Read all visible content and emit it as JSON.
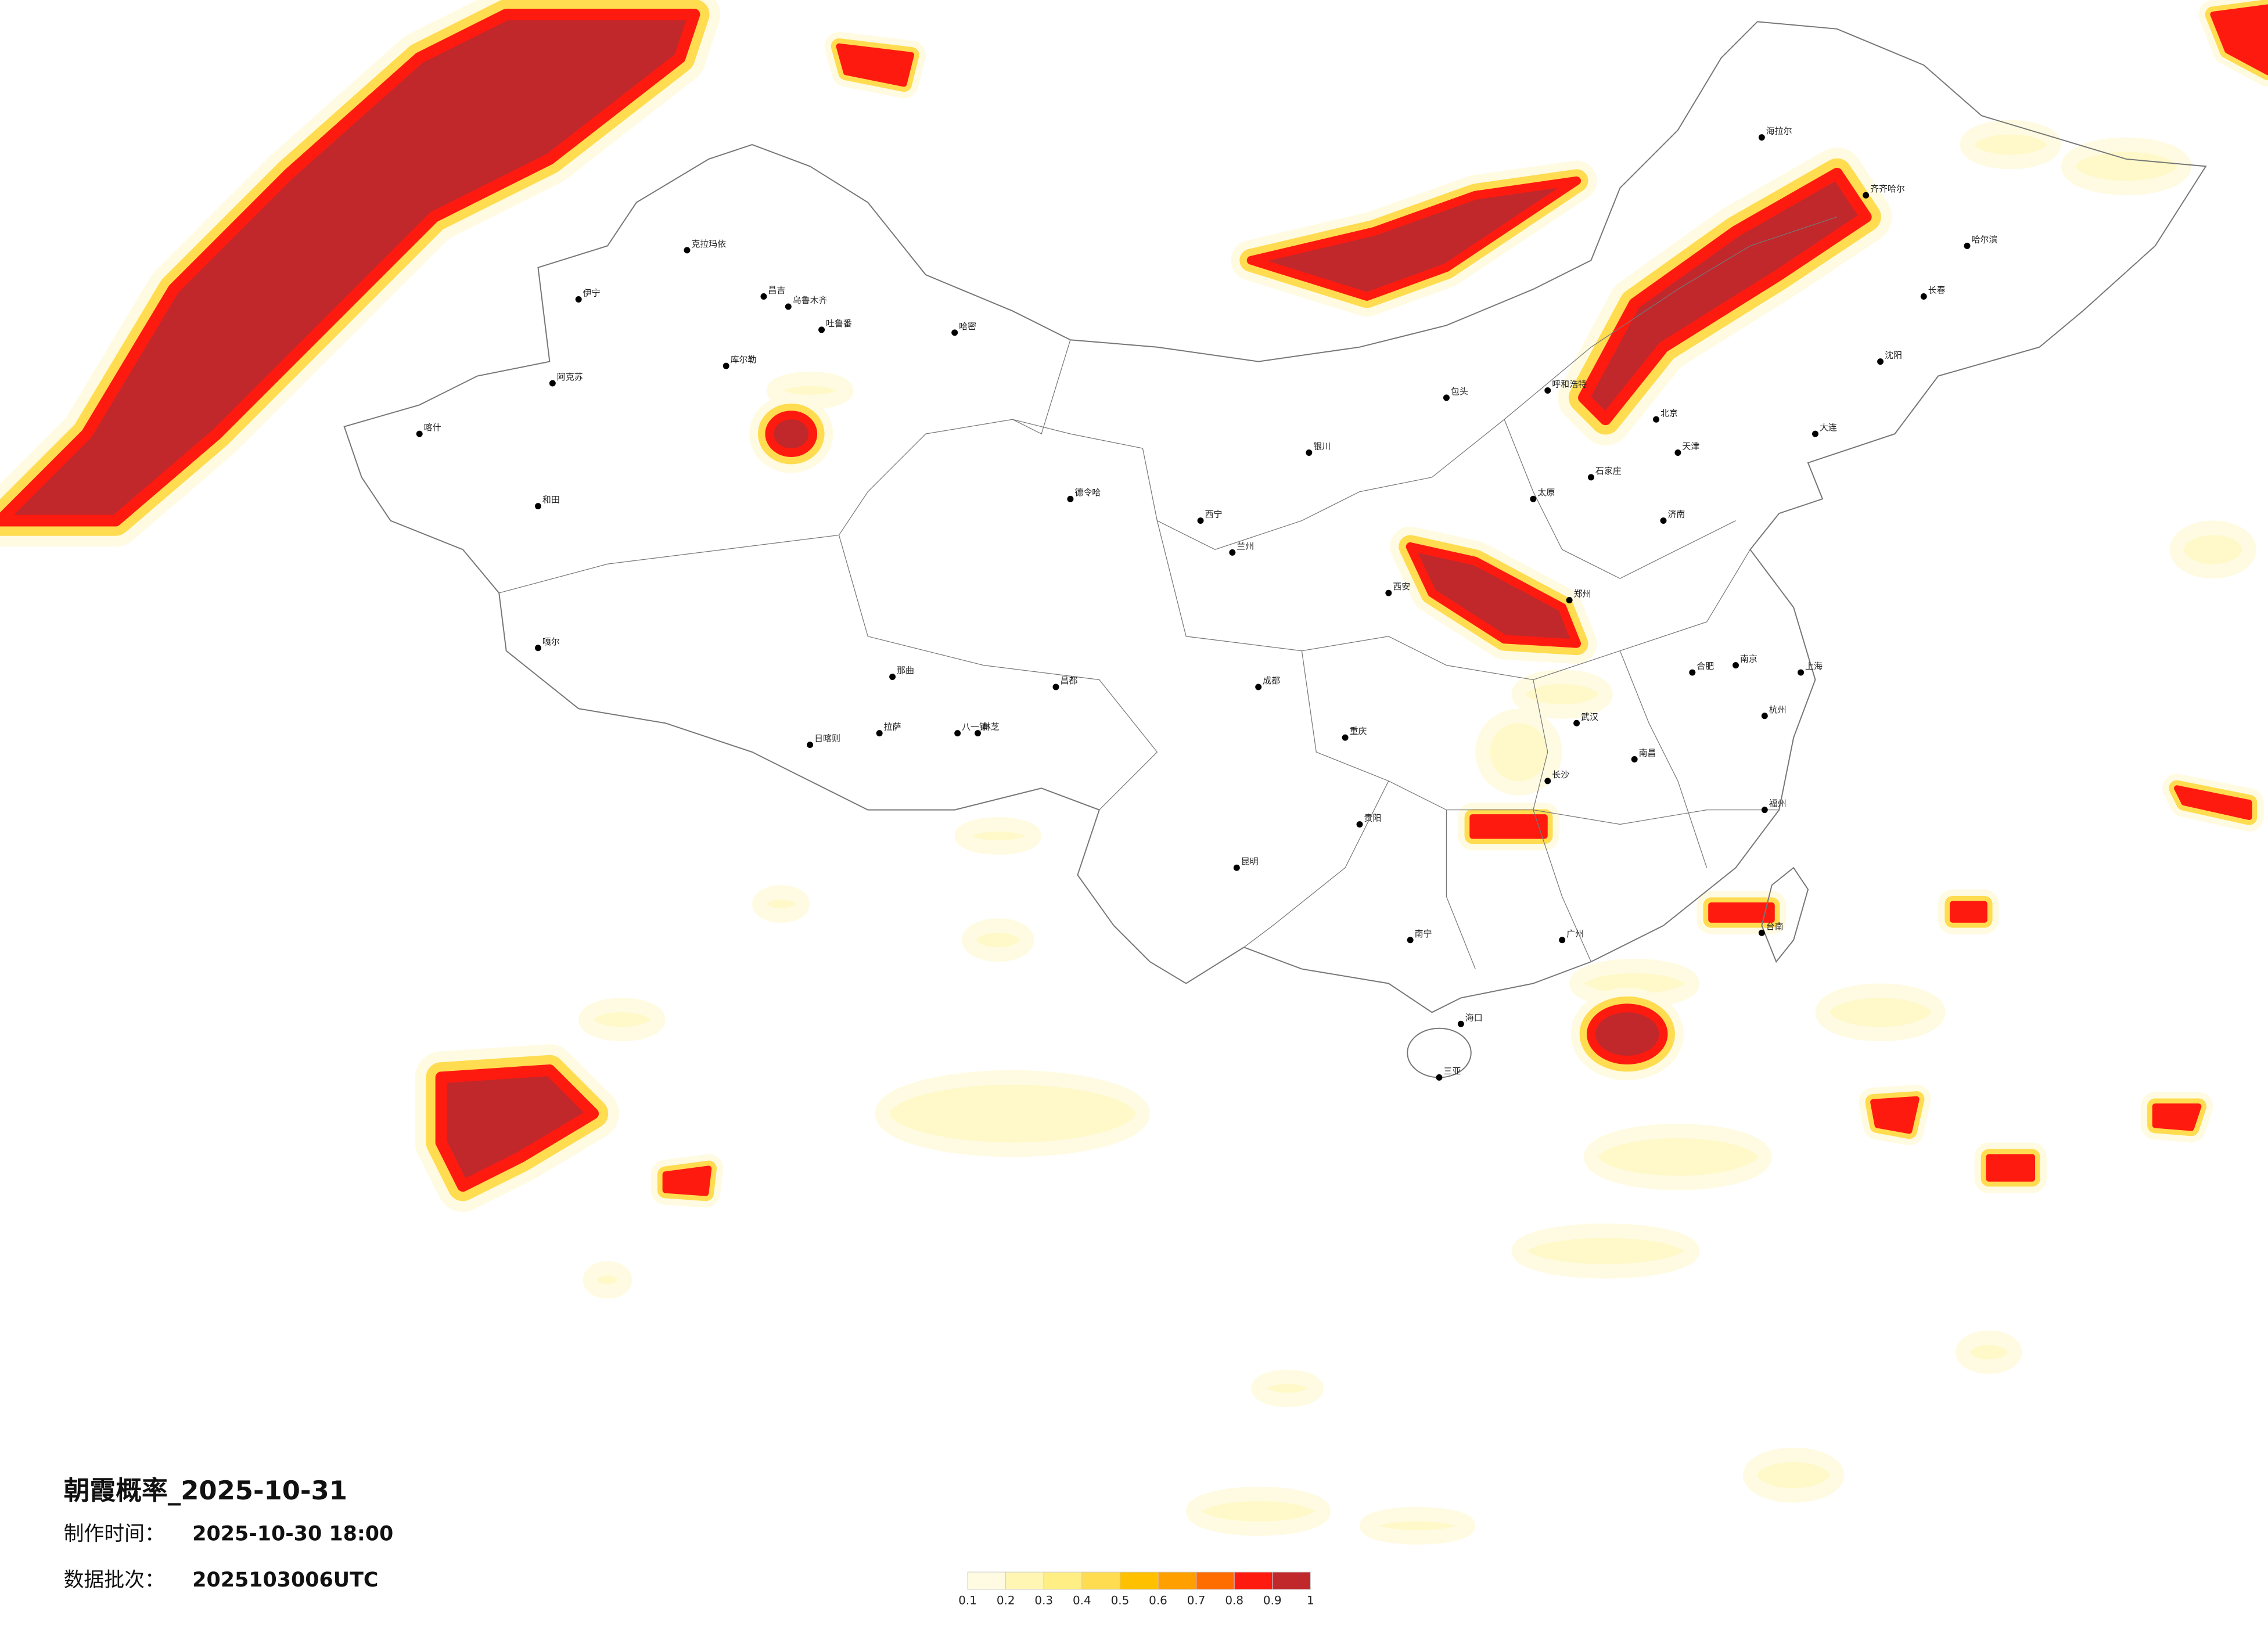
{
  "header": {
    "title": "朝霞概率_2025-10-31",
    "production_time_label": "制作时间：",
    "production_time": "2025-10-30 18:00",
    "batch_label": "数据批次：",
    "batch": "2025103006UTC"
  },
  "legend": {
    "ticks": [
      0.1,
      0.2,
      0.3,
      0.4,
      0.5,
      0.6,
      0.7,
      0.8,
      0.9,
      1
    ],
    "colors": [
      "#fffbe2",
      "#fff6b4",
      "#ffee84",
      "#ffdc50",
      "#ffc000",
      "#ffa000",
      "#ff6c00",
      "#ff1a10",
      "#c0282c"
    ]
  },
  "cities": [
    "克拉玛依",
    "伊宁",
    "昌吉",
    "乌鲁木齐",
    "吐鲁番",
    "哈密",
    "库尔勒",
    "阿克苏",
    "喀什",
    "和田",
    "德令哈",
    "嘎尔",
    "拉萨",
    "日喀则",
    "那曲",
    "八一镇",
    "林芝",
    "昌都",
    "西宁",
    "兰州",
    "银川",
    "呼和浩特",
    "包头",
    "北京",
    "天津",
    "石家庄",
    "太原",
    "济南",
    "郑州",
    "西安",
    "武汉",
    "长沙",
    "南昌",
    "合肥",
    "南京",
    "上海",
    "杭州",
    "福州",
    "广州",
    "南宁",
    "海口",
    "三亚",
    "昆明",
    "贵阳",
    "成都",
    "重庆",
    "哈尔滨",
    "长春",
    "沈阳",
    "大连",
    "齐齐哈尔",
    "海拉尔",
    "台南"
  ]
}
